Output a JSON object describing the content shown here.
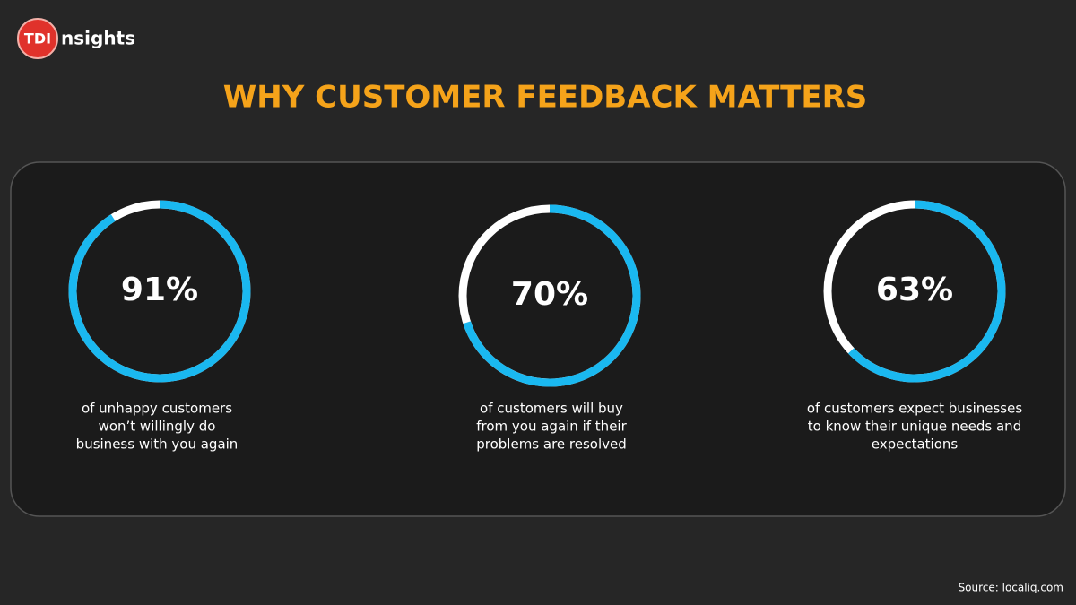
{
  "logo": {
    "mark": "TDI",
    "text": "nsights"
  },
  "title": "WHY CUSTOMER FEEDBACK MATTERS",
  "chart_data": [
    {
      "type": "donut",
      "values": [
        91
      ],
      "value_labels": [
        "91%"
      ],
      "color": "#1ab8f0",
      "track_color": "#ffffff",
      "caption": [
        "of unhappy customers",
        "won’t willingly do",
        "business with you again"
      ]
    },
    {
      "type": "donut",
      "values": [
        70
      ],
      "value_labels": [
        "70%"
      ],
      "color": "#1ab8f0",
      "track_color": "#ffffff",
      "caption": [
        "of customers will buy",
        "from you again if their",
        "problems are resolved"
      ]
    },
    {
      "type": "donut",
      "values": [
        63
      ],
      "value_labels": [
        "63%"
      ],
      "color": "#1ab8f0",
      "track_color": "#ffffff",
      "caption": [
        "of customers expect businesses",
        "to know their unique needs and",
        "expectations"
      ]
    }
  ],
  "source": "Source: localiq.com"
}
